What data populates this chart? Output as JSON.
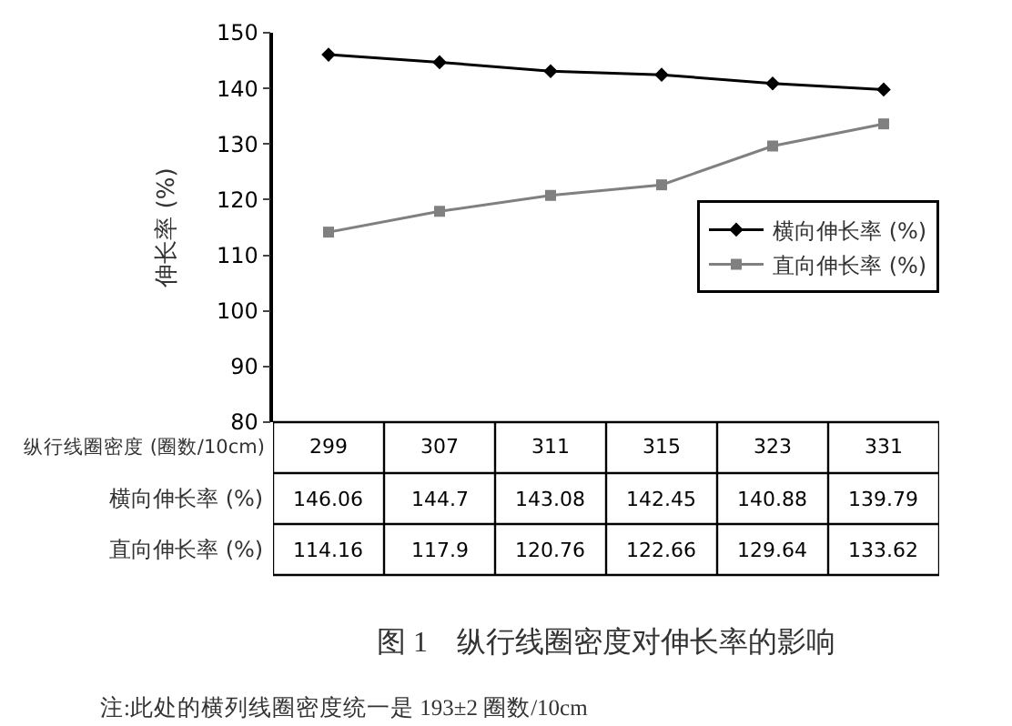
{
  "chart_data": {
    "type": "line",
    "title": "图 1　纵行线圈密度对伸长率的影响",
    "xlabel": "纵行线圈密度 (圈数/10cm)",
    "ylabel": "伸长率 (%)",
    "categories": [
      "299",
      "307",
      "311",
      "315",
      "323",
      "331"
    ],
    "series": [
      {
        "name": "横向伸长率 (%)",
        "color": "#000000",
        "marker": "diamond",
        "values": [
          146.06,
          144.7,
          143.08,
          142.45,
          140.88,
          139.79
        ]
      },
      {
        "name": "直向伸长率 (%)",
        "color": "#808080",
        "marker": "square",
        "values": [
          114.16,
          117.9,
          120.76,
          122.66,
          129.64,
          133.62
        ]
      }
    ],
    "ylim": [
      80,
      150
    ],
    "yticks": [
      80,
      90,
      100,
      110,
      120,
      130,
      140,
      150
    ],
    "legend": "right",
    "data_labels": true,
    "line_style": "solid",
    "annotations": [
      "注:此处的横列线圈密度统一是 193±2 圈数/10cm"
    ]
  }
}
